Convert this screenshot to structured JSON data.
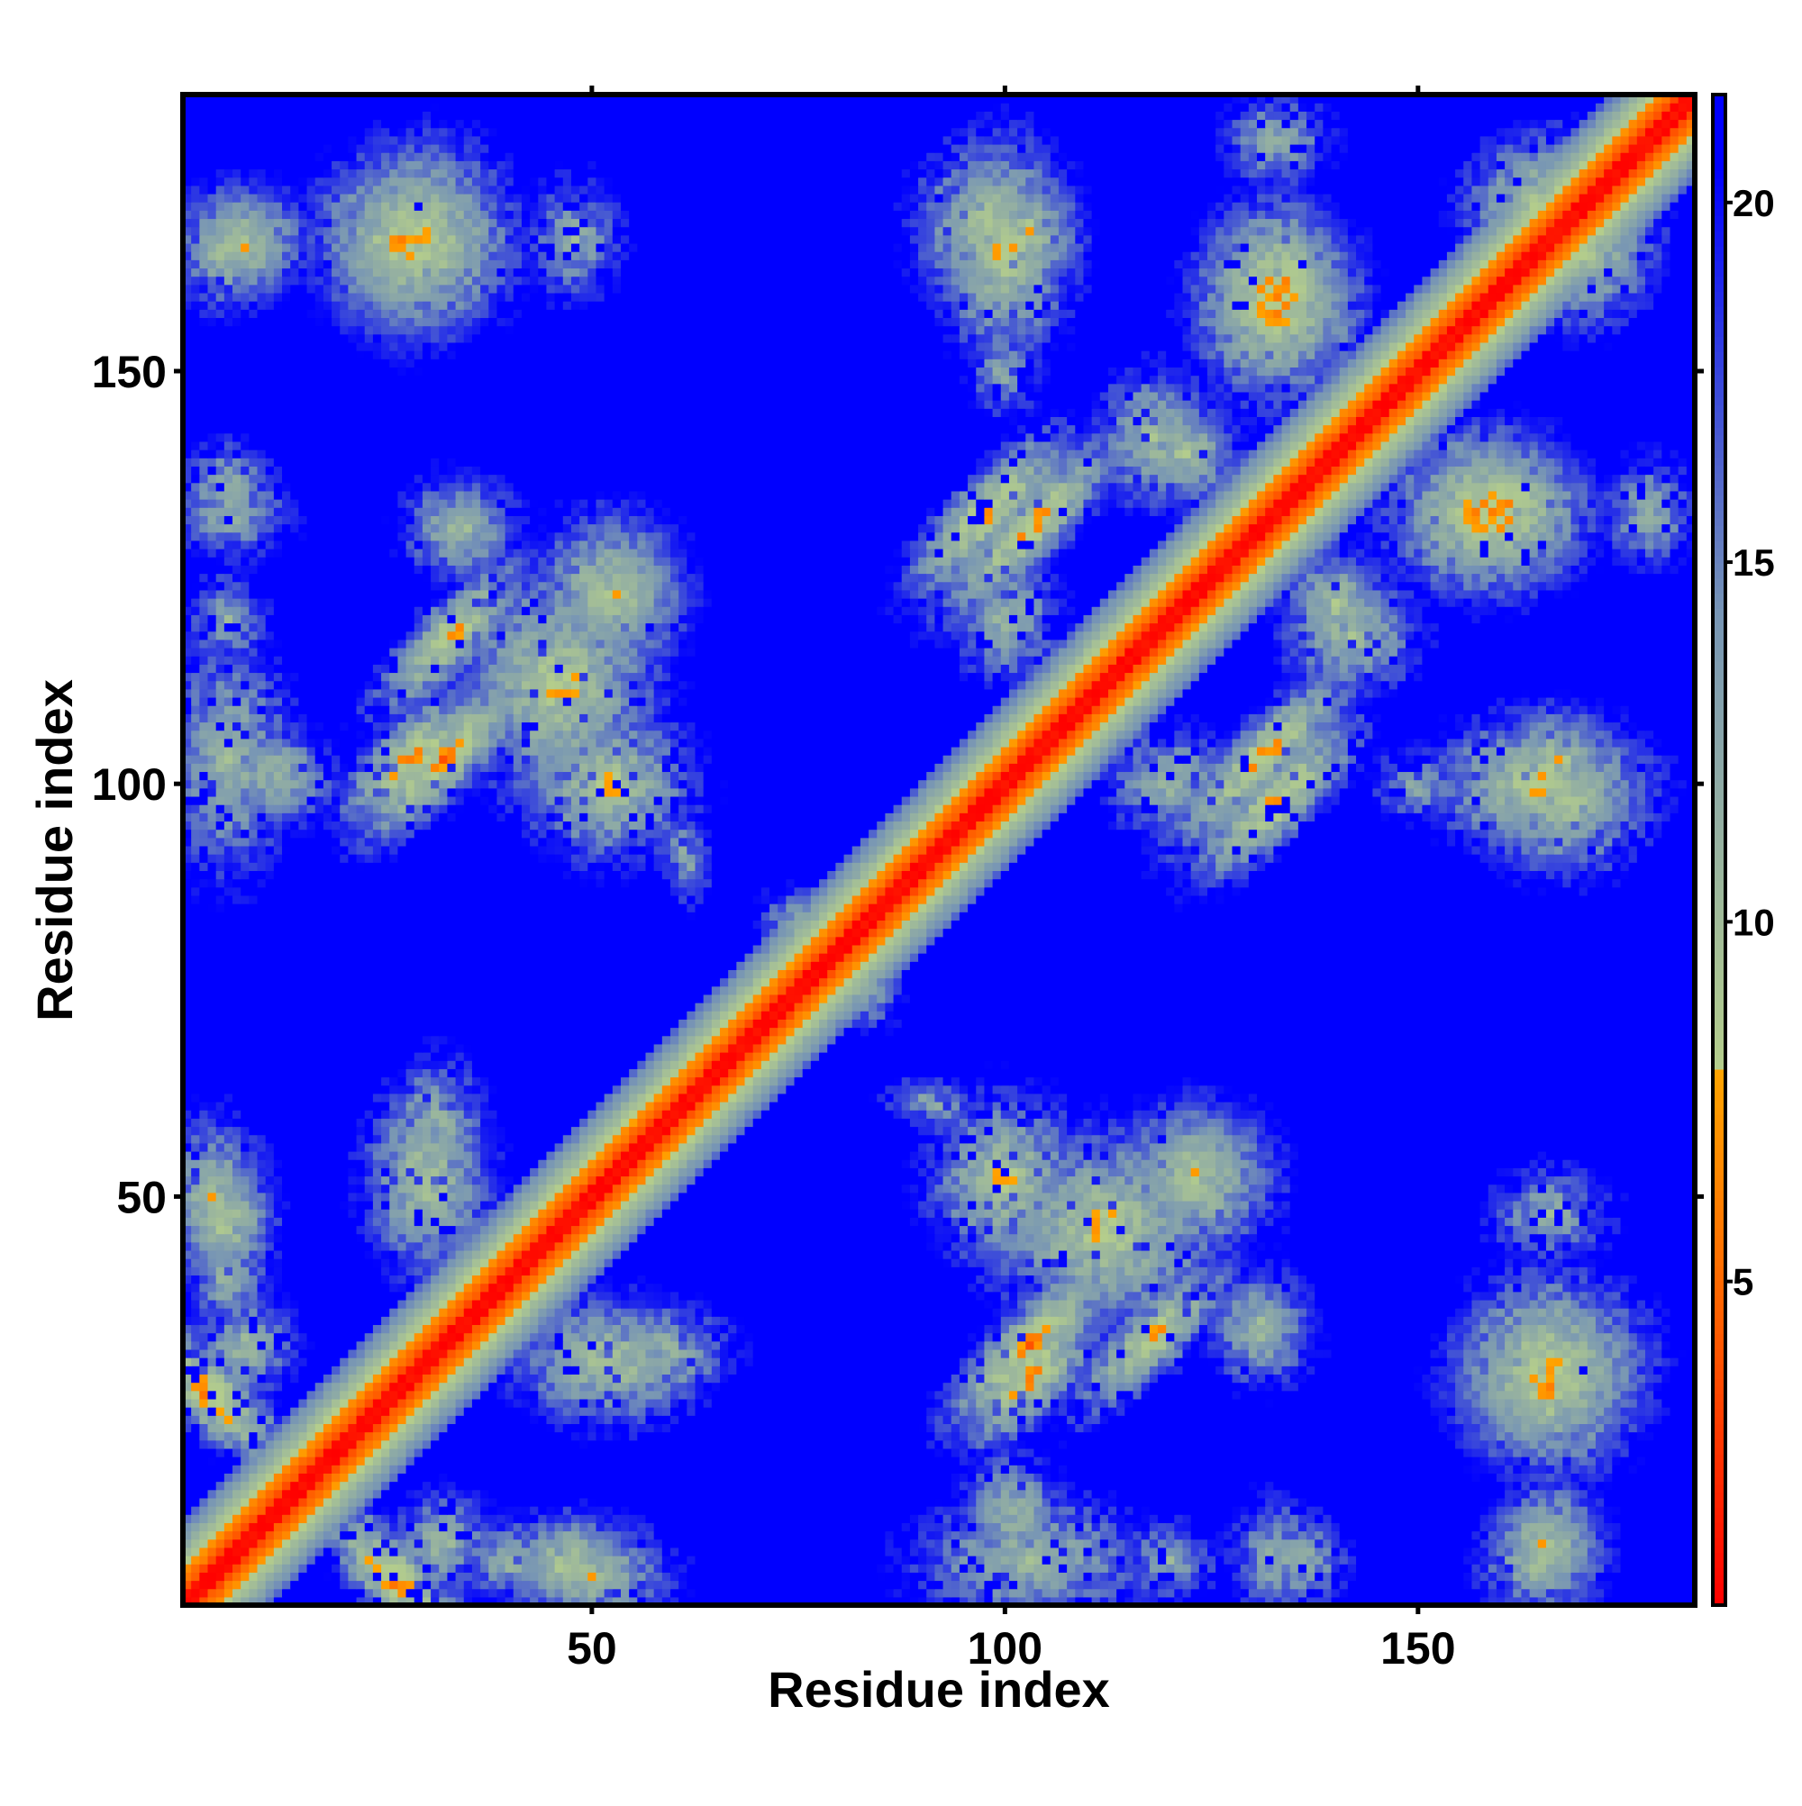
{
  "chart_data": {
    "type": "heatmap",
    "title": "",
    "xlabel": "Residue index",
    "ylabel": "Residue index",
    "n_residues": 183,
    "xlim": [
      1,
      183
    ],
    "ylim": [
      1,
      183
    ],
    "x_ticks": [
      50,
      100,
      150
    ],
    "y_ticks": [
      50,
      100,
      150
    ],
    "colorbar": {
      "range": [
        0.5,
        21.5
      ],
      "ticks": [
        5,
        10,
        15,
        20
      ],
      "cutoff": 8,
      "colors_below_cutoff": [
        "#ff0000",
        "#ff5a00",
        "#ffa500"
      ],
      "colors_above_cutoff": [
        "#b4cd8c",
        "#7896b4",
        "#0000ff"
      ],
      "max_color": "#0000ff"
    },
    "matrix_description": "symmetric residue-residue distance map",
    "diagonal": {
      "min_value": 0.5,
      "band_width_residues": 10
    },
    "contact_patches": [
      {
        "i": 4,
        "j": 26,
        "ri": 7,
        "rj": 7,
        "orient": "anti",
        "min": 4.5
      },
      {
        "i": 6,
        "j": 47,
        "ri": 5,
        "rj": 6,
        "orient": "none",
        "min": 7.5
      },
      {
        "i": 8,
        "j": 32,
        "ri": 6,
        "rj": 6,
        "orient": "none",
        "min": 9.5
      },
      {
        "i": 4,
        "j": 50,
        "ri": 6,
        "rj": 9,
        "orient": "none",
        "min": 8.5
      },
      {
        "i": 6,
        "j": 103,
        "ri": 8,
        "rj": 14,
        "orient": "none",
        "min": 9.5
      },
      {
        "i": 6,
        "j": 133,
        "ri": 8,
        "rj": 6,
        "orient": "none",
        "min": 10.5
      },
      {
        "i": 8,
        "j": 165,
        "ri": 6,
        "rj": 6,
        "orient": "none",
        "min": 8.5
      },
      {
        "i": 12,
        "j": 101,
        "ri": 7,
        "rj": 6,
        "orient": "none",
        "min": 9.5
      },
      {
        "i": 28,
        "j": 103,
        "ri": 7,
        "rj": 9,
        "orient": "para",
        "min": 5.0
      },
      {
        "i": 33,
        "j": 118,
        "ri": 9,
        "rj": 14,
        "orient": "para",
        "min": 6.0
      },
      {
        "i": 28,
        "j": 165,
        "ri": 8,
        "rj": 9,
        "orient": "none",
        "min": 7.0
      },
      {
        "i": 33,
        "j": 131,
        "ri": 7,
        "rj": 7,
        "orient": "none",
        "min": 10.5
      },
      {
        "i": 52,
        "j": 100,
        "ri": 9,
        "rj": 8,
        "orient": "none",
        "min": 7.5
      },
      {
        "i": 52,
        "j": 123,
        "ri": 8,
        "rj": 9,
        "orient": "none",
        "min": 8.0
      },
      {
        "i": 48,
        "j": 5,
        "ri": 8,
        "rj": 6,
        "orient": "none",
        "min": 9.5
      },
      {
        "i": 52,
        "j": 30,
        "ri": 10,
        "rj": 7,
        "orient": "none",
        "min": 8.0
      },
      {
        "i": 31,
        "j": 58,
        "ri": 6,
        "rj": 9,
        "orient": "none",
        "min": 9.5
      },
      {
        "i": 103,
        "j": 32,
        "ri": 9,
        "rj": 8,
        "orient": "para",
        "min": 5.0
      },
      {
        "i": 112,
        "j": 46,
        "ri": 12,
        "rj": 10,
        "orient": "none",
        "min": 7.0
      },
      {
        "i": 123,
        "j": 53,
        "ri": 9,
        "rj": 8,
        "orient": "none",
        "min": 8.5
      },
      {
        "i": 100,
        "j": 120,
        "ri": 7,
        "rj": 8,
        "orient": "none",
        "min": 10.0
      },
      {
        "i": 103,
        "j": 167,
        "ri": 6,
        "rj": 7,
        "orient": "none",
        "min": 8.5
      },
      {
        "i": 98,
        "j": 133,
        "ri": 9,
        "rj": 7,
        "orient": "para",
        "min": 5.5
      },
      {
        "i": 98,
        "j": 168,
        "ri": 8,
        "rj": 9,
        "orient": "none",
        "min": 8.0
      },
      {
        "i": 100,
        "j": 150,
        "ri": 5,
        "rj": 6,
        "orient": "none",
        "min": 11.0
      },
      {
        "i": 131,
        "j": 103,
        "ri": 10,
        "rj": 7,
        "orient": "para",
        "min": 5.5
      },
      {
        "i": 133,
        "j": 160,
        "ri": 7,
        "rj": 8,
        "orient": "none",
        "min": 5.5
      },
      {
        "i": 133,
        "j": 178,
        "ri": 7,
        "rj": 6,
        "orient": "none",
        "min": 10.5
      },
      {
        "i": 122,
        "j": 140,
        "ri": 6,
        "rj": 6,
        "orient": "none",
        "min": 8.5
      },
      {
        "i": 118,
        "j": 142,
        "ri": 7,
        "rj": 8,
        "orient": "none",
        "min": 9.0
      },
      {
        "i": 158,
        "j": 133,
        "ri": 9,
        "rj": 8,
        "orient": "none",
        "min": 6.0
      },
      {
        "i": 165,
        "j": 100,
        "ri": 11,
        "rj": 7,
        "orient": "none",
        "min": 7.0
      },
      {
        "i": 165,
        "j": 170,
        "ri": 8,
        "rj": 8,
        "orient": "none",
        "min": 7.5
      },
      {
        "i": 165,
        "j": 6,
        "ri": 7,
        "rj": 6,
        "orient": "none",
        "min": 8.5
      },
      {
        "i": 166,
        "j": 27,
        "ri": 9,
        "rj": 9,
        "orient": "none",
        "min": 7.0
      },
      {
        "i": 120,
        "j": 6,
        "ri": 6,
        "rj": 5,
        "orient": "none",
        "min": 10.5
      },
      {
        "i": 131,
        "j": 35,
        "ri": 7,
        "rj": 7,
        "orient": "none",
        "min": 10.5
      },
      {
        "i": 48,
        "j": 166,
        "ri": 6,
        "rj": 8,
        "orient": "none",
        "min": 10.5
      },
      {
        "i": 30,
        "j": 166,
        "ri": 9,
        "rj": 10,
        "orient": "none",
        "min": 7.0
      },
      {
        "i": 8,
        "j": 166,
        "ri": 7,
        "rj": 6,
        "orient": "none",
        "min": 8.5
      },
      {
        "i": 6,
        "j": 136,
        "ri": 6,
        "rj": 6,
        "orient": "none",
        "min": 10.5
      },
      {
        "i": 6,
        "j": 40,
        "ri": 5,
        "rj": 6,
        "orient": "none",
        "min": 10.0
      },
      {
        "i": 80,
        "j": 78,
        "ri": 5,
        "rj": 5,
        "orient": "anti",
        "min": 5.0
      },
      {
        "i": 90,
        "j": 62,
        "ri": 6,
        "rj": 3,
        "orient": "none",
        "min": 12.0
      },
      {
        "i": 61,
        "j": 92,
        "ri": 3,
        "rj": 6,
        "orient": "none",
        "min": 12.0
      }
    ]
  }
}
